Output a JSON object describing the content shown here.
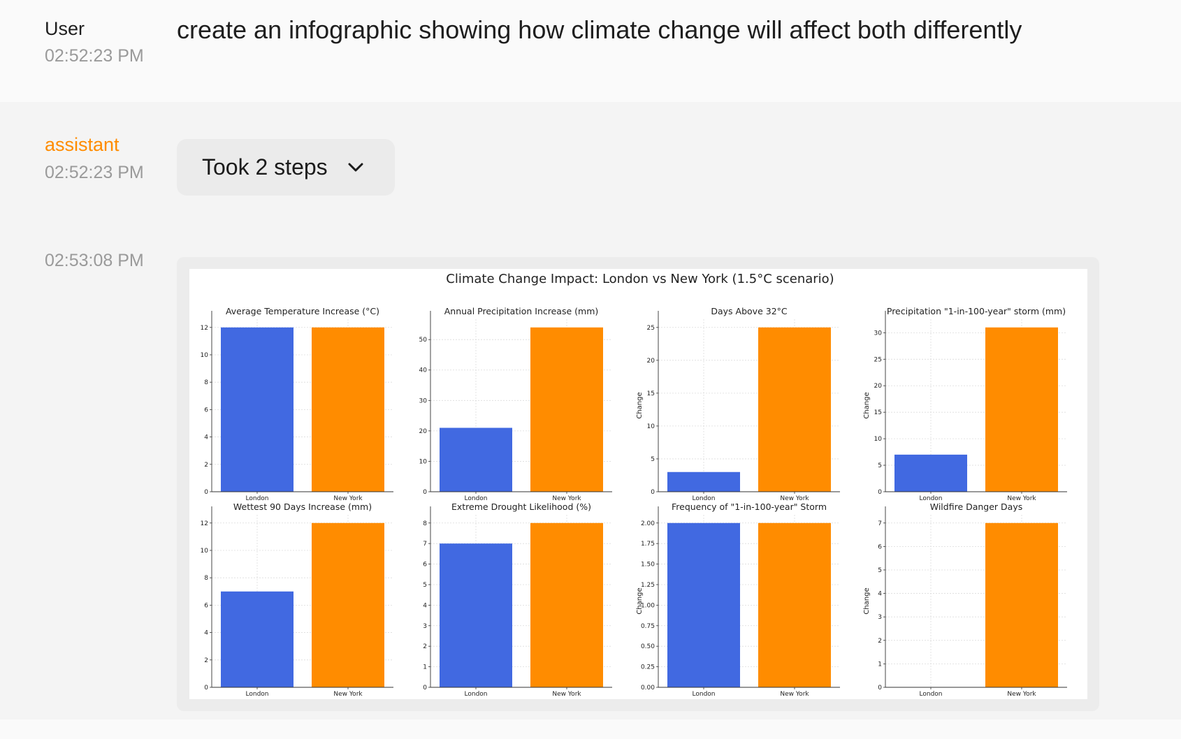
{
  "conversation": {
    "user": {
      "speaker": "User",
      "timestamp": "02:52:23 PM",
      "message": "create an infographic showing how climate change will affect both differently"
    },
    "assistant": {
      "speaker": "assistant",
      "timestamp": "02:52:23 PM",
      "steps_label": "Took 2 steps",
      "steps_icon": "chevron-down-icon",
      "image_timestamp": "02:53:08 PM"
    }
  },
  "colors": {
    "assistant_name": "#ff8c00",
    "london": "#4169e1",
    "new_york": "#ff8c00"
  },
  "figure_title": "Climate Change Impact: London vs New York (1.5°C scenario)",
  "chart_data": [
    {
      "type": "bar",
      "title": "Average Temperature Increase (°C)",
      "categories": [
        "London",
        "New York"
      ],
      "values": [
        12,
        12
      ],
      "ylabel": "",
      "ylim": [
        0,
        12.6
      ],
      "yticks": [
        0,
        2,
        4,
        6,
        8,
        10,
        12
      ],
      "tick_decimals": 0
    },
    {
      "type": "bar",
      "title": "Annual Precipitation Increase (mm)",
      "categories": [
        "London",
        "New York"
      ],
      "values": [
        21,
        54
      ],
      "ylabel": "",
      "ylim": [
        0,
        56.7
      ],
      "yticks": [
        0,
        10,
        20,
        30,
        40,
        50
      ],
      "tick_decimals": 0
    },
    {
      "type": "bar",
      "title": "Days Above 32°C",
      "categories": [
        "London",
        "New York"
      ],
      "values": [
        3,
        25
      ],
      "ylabel": "Change",
      "ylim": [
        0,
        26.25
      ],
      "yticks": [
        0,
        5,
        10,
        15,
        20,
        25
      ],
      "tick_decimals": 0
    },
    {
      "type": "bar",
      "title": "Precipitation \"1-in-100-year\" storm (mm)",
      "categories": [
        "London",
        "New York"
      ],
      "values": [
        7,
        31
      ],
      "ylabel": "Change",
      "ylim": [
        0,
        32.55
      ],
      "yticks": [
        0,
        5,
        10,
        15,
        20,
        25,
        30
      ],
      "tick_decimals": 0
    },
    {
      "type": "bar",
      "title": "Wettest 90 Days Increase (mm)",
      "categories": [
        "London",
        "New York"
      ],
      "values": [
        7,
        12
      ],
      "ylabel": "",
      "ylim": [
        0,
        12.6
      ],
      "yticks": [
        0,
        2,
        4,
        6,
        8,
        10,
        12
      ],
      "tick_decimals": 0
    },
    {
      "type": "bar",
      "title": "Extreme Drought Likelihood (%)",
      "categories": [
        "London",
        "New York"
      ],
      "values": [
        7,
        8
      ],
      "ylabel": "",
      "ylim": [
        0,
        8.4
      ],
      "yticks": [
        0,
        1,
        2,
        3,
        4,
        5,
        6,
        7,
        8
      ],
      "tick_decimals": 0
    },
    {
      "type": "bar",
      "title": "Frequency of \"1-in-100-year\" Storm",
      "categories": [
        "London",
        "New York"
      ],
      "values": [
        2,
        2
      ],
      "ylabel": "Change",
      "ylim": [
        0,
        2.1
      ],
      "yticks": [
        0,
        0.25,
        0.5,
        0.75,
        1.0,
        1.25,
        1.5,
        1.75,
        2.0
      ],
      "tick_decimals": 2
    },
    {
      "type": "bar",
      "title": "Wildfire Danger Days",
      "categories": [
        "London",
        "New York"
      ],
      "values": [
        0,
        7
      ],
      "ylabel": "Change",
      "ylim": [
        0,
        7.35
      ],
      "yticks": [
        0,
        1,
        2,
        3,
        4,
        5,
        6,
        7
      ],
      "tick_decimals": 0
    }
  ]
}
